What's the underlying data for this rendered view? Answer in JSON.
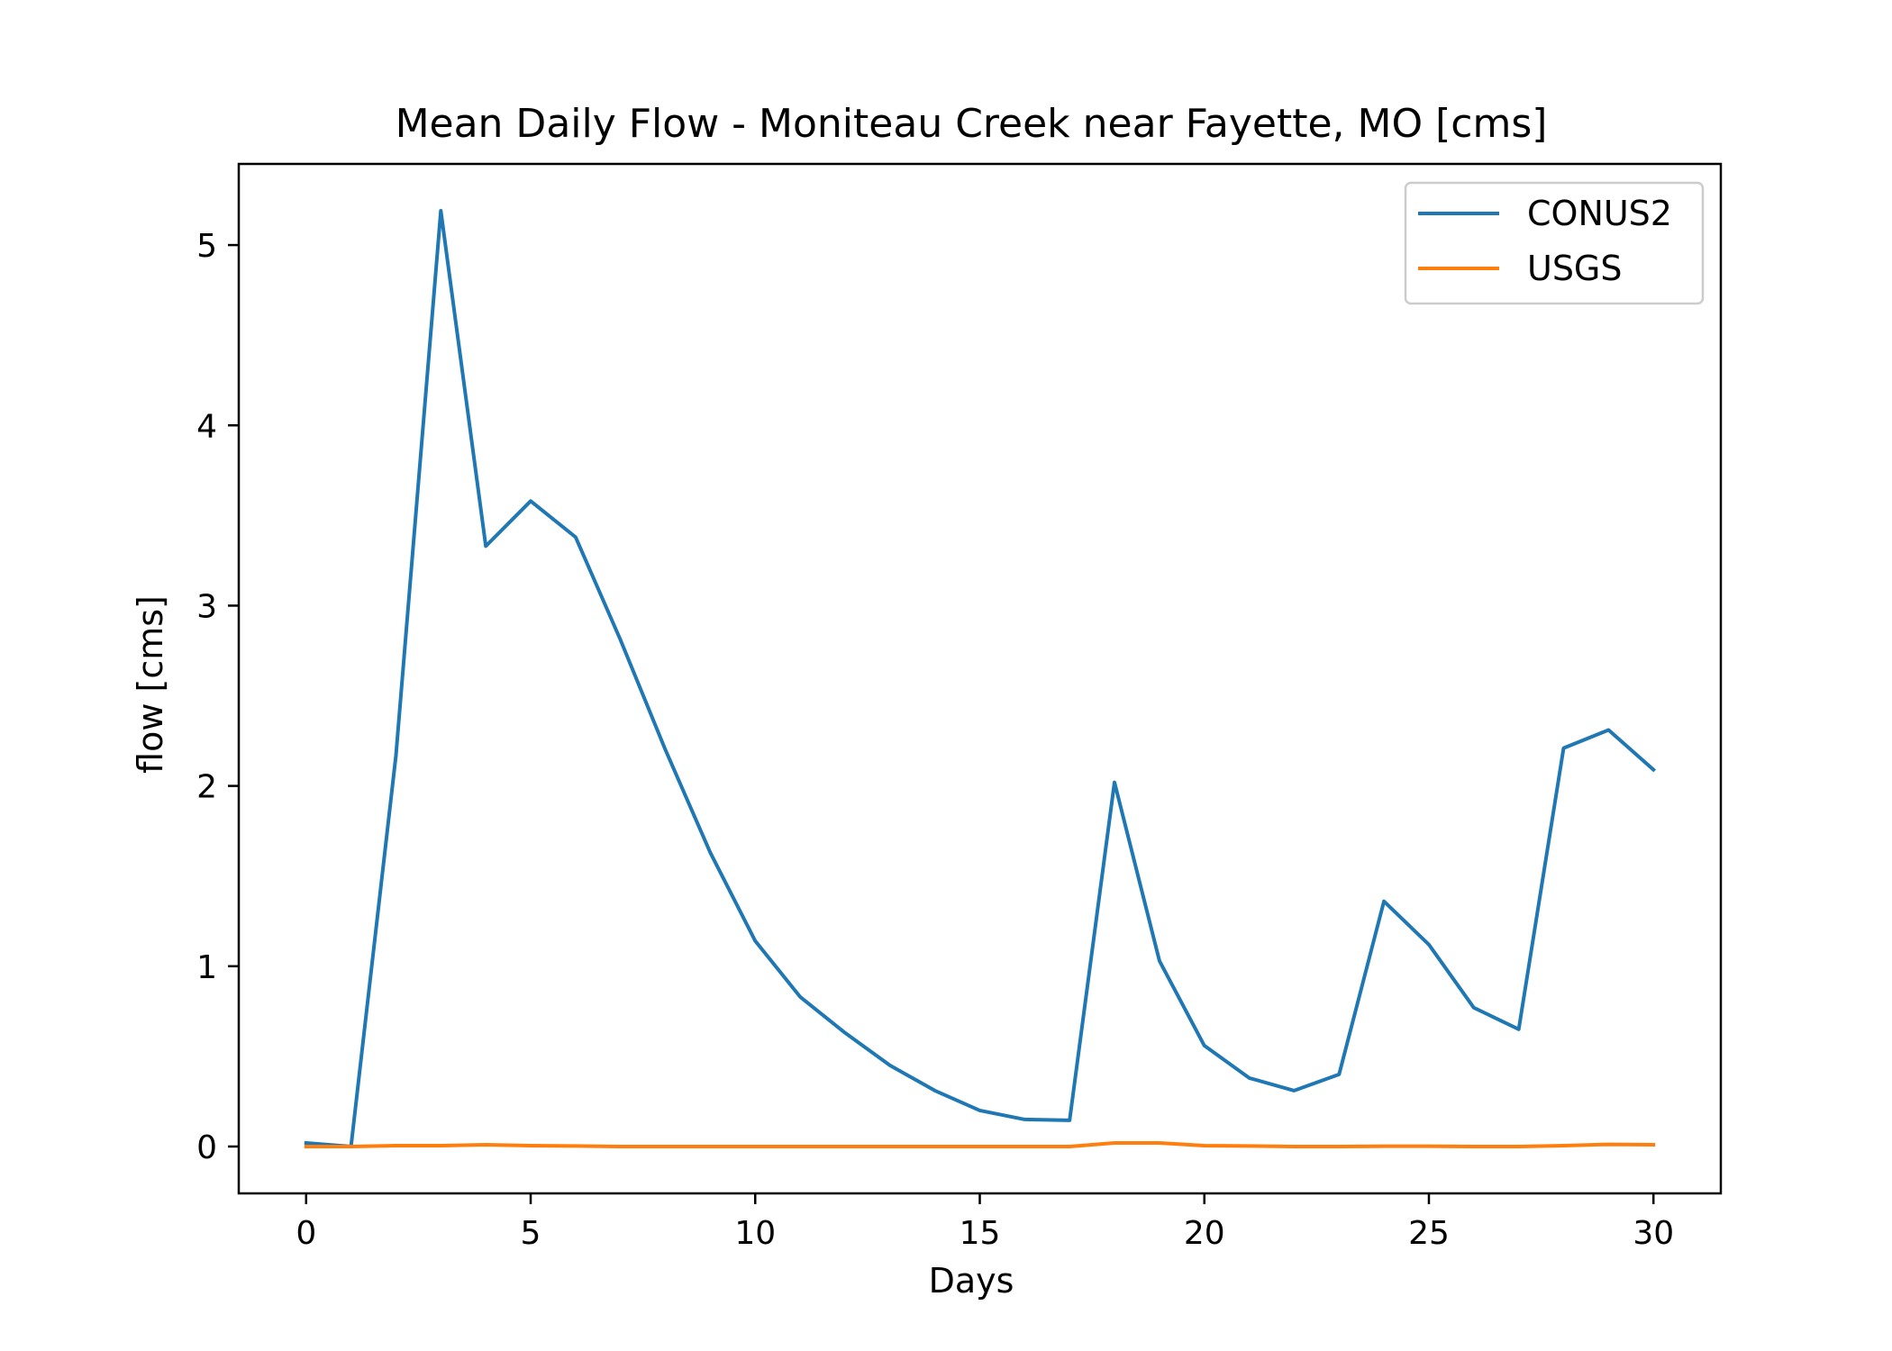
{
  "chart_data": {
    "type": "line",
    "title": "Mean Daily Flow - Moniteau Creek near Fayette, MO [cms]",
    "xlabel": "Days",
    "ylabel": "flow [cms]",
    "xlim": [
      -1.5,
      31.5
    ],
    "ylim": [
      -0.26,
      5.45
    ],
    "xticks": [
      0,
      5,
      10,
      15,
      20,
      25,
      30
    ],
    "yticks": [
      0,
      1,
      2,
      3,
      4,
      5
    ],
    "grid": false,
    "legend_position": "top-right",
    "x": [
      0,
      1,
      2,
      3,
      4,
      5,
      6,
      7,
      8,
      9,
      10,
      11,
      12,
      13,
      14,
      15,
      16,
      17,
      18,
      19,
      20,
      21,
      22,
      23,
      24,
      25,
      26,
      27,
      28,
      29,
      30
    ],
    "series": [
      {
        "name": "CONUS2",
        "color": "#1f77b4",
        "values": [
          0.02,
          0.0,
          2.17,
          5.19,
          3.33,
          3.58,
          3.38,
          2.81,
          2.2,
          1.63,
          1.14,
          0.83,
          0.63,
          0.45,
          0.31,
          0.2,
          0.15,
          0.145,
          2.02,
          1.03,
          0.56,
          0.38,
          0.31,
          0.4,
          1.36,
          1.12,
          0.77,
          0.65,
          2.21,
          2.31,
          2.09
        ]
      },
      {
        "name": "USGS",
        "color": "#ff7f0e",
        "values": [
          0.0,
          0.0,
          0.005,
          0.005,
          0.01,
          0.005,
          0.003,
          0.0,
          0.0,
          0.0,
          0.0,
          0.0,
          0.0,
          0.0,
          0.0,
          0.0,
          0.0,
          0.0,
          0.02,
          0.02,
          0.005,
          0.003,
          0.0,
          0.0,
          0.002,
          0.002,
          0.0,
          0.0,
          0.005,
          0.012,
          0.01
        ]
      }
    ]
  }
}
